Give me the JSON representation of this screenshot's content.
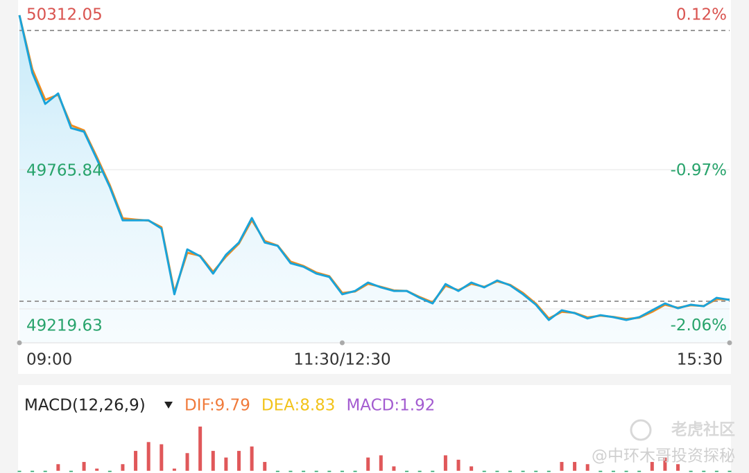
{
  "chart_data": [
    {
      "type": "line",
      "categories": [
        "09:00",
        null,
        null,
        null,
        null,
        null,
        null,
        null,
        null,
        null,
        null,
        null,
        null,
        null,
        null,
        null,
        null,
        null,
        null,
        null,
        null,
        null,
        null,
        null,
        null,
        "11:30/12:30",
        null,
        null,
        null,
        null,
        null,
        null,
        null,
        null,
        null,
        null,
        null,
        null,
        null,
        null,
        null,
        null,
        null,
        null,
        null,
        null,
        null,
        null,
        null,
        null,
        null,
        null,
        null,
        null,
        null,
        "15:30"
      ],
      "series": [
        {
          "color": "#1aa3d9",
          "values": [
            50372,
            50146,
            50024,
            50065,
            49929,
            49915,
            49807,
            49698,
            49567,
            49567,
            49567,
            49535,
            49277,
            49453,
            49426,
            49358,
            49432,
            49480,
            49576,
            49480,
            49467,
            49399,
            49385,
            49358,
            49345,
            49277,
            49290,
            49323,
            49304,
            49290,
            49290,
            49263,
            49241,
            49317,
            49290,
            49323,
            49304,
            49331,
            49312,
            49277,
            49236,
            49176,
            49214,
            49203,
            49182,
            49195,
            49187,
            49176,
            49187,
            49214,
            49241,
            49222,
            49236,
            49230,
            49263,
            49255
          ]
        },
        {
          "color": "#f08c1e",
          "values": [
            50372,
            50160,
            50040,
            50060,
            49940,
            49920,
            49815,
            49705,
            49575,
            49570,
            49566,
            49540,
            49285,
            49440,
            49428,
            49365,
            49425,
            49476,
            49568,
            49486,
            49468,
            49405,
            49388,
            49362,
            49348,
            49282,
            49288,
            49318,
            49306,
            49292,
            49290,
            49266,
            49245,
            49310,
            49293,
            49318,
            49306,
            49328,
            49314,
            49282,
            49240,
            49182,
            49208,
            49204,
            49186,
            49193,
            49188,
            49180,
            49185,
            49208,
            49236,
            49224,
            49234,
            49231,
            49258,
            49256
          ]
        }
      ],
      "ylim": [
        49086.5,
        50377.3
      ],
      "yticks": [
        50312.05,
        49765.84,
        49219.63
      ],
      "ytick_colors": [
        "#d9534f",
        "#27a36b",
        "#27a36b"
      ],
      "y2lim": [
        -2.33,
        0.25
      ],
      "y2ticks": [
        {
          "value": 0.12,
          "label": "0.12%"
        },
        {
          "value": -0.97,
          "label": "-0.97%"
        },
        {
          "value": -2.06,
          "label": "-2.06%"
        }
      ],
      "reference_line": 49249.5,
      "grid": true
    },
    {
      "type": "bar",
      "indicator": "MACD(12,26,9)",
      "legend": [
        {
          "name": "DIF:9.79",
          "color": "#f07a3a"
        },
        {
          "name": "DEA:8.83",
          "color": "#f2c31a"
        },
        {
          "name": "MACD:1.92",
          "color": "#a35bd0"
        }
      ],
      "values": [
        -0.5,
        -0.5,
        -0.5,
        3,
        -0.5,
        4,
        1,
        -0.5,
        3,
        9,
        13,
        12,
        1,
        8,
        20,
        9,
        6,
        9,
        11,
        4,
        -0.5,
        -0.5,
        -0.5,
        -0.5,
        -0.5,
        -0.5,
        -0.5,
        6,
        7,
        2,
        -0.5,
        -0.5,
        -0.5,
        7,
        5,
        2,
        -0.5,
        -0.5,
        -0.5,
        -0.5,
        -0.5,
        -0.5,
        4,
        4,
        3,
        -0.5,
        -0.5,
        -0.5,
        -0.5,
        4,
        6,
        3,
        -0.5,
        -0.5,
        -0.5,
        -0.5
      ],
      "ylim": [
        -1,
        25
      ],
      "up_color": "#e0585a",
      "down_color": "#2aa36b"
    }
  ],
  "watermark": {
    "brand": "老虎社区",
    "author": "@中环木哥投资探秘"
  }
}
